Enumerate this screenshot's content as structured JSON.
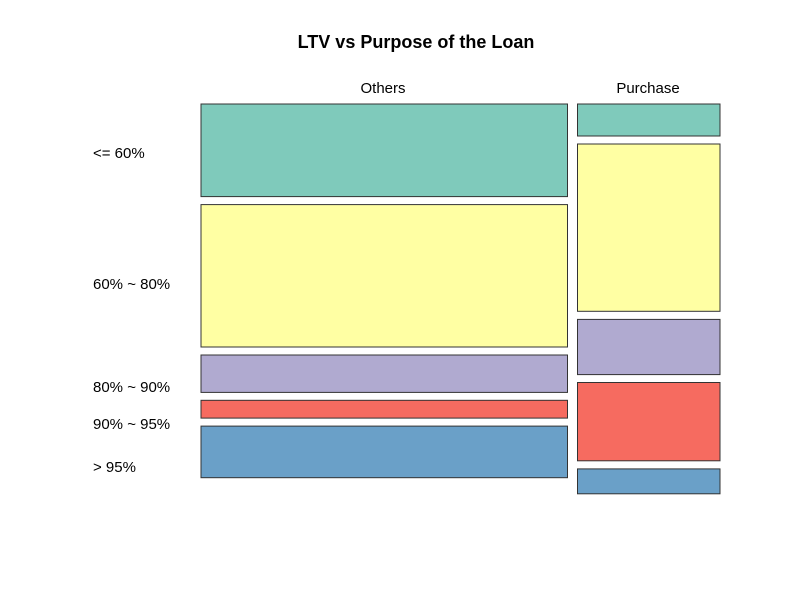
{
  "chart_data": {
    "type": "mosaic",
    "title": "LTV vs Purpose of the Loan",
    "columns": [
      {
        "name": "Others",
        "width_share": 0.72
      },
      {
        "name": "Purchase",
        "width_share": 0.28
      }
    ],
    "rows": [
      "<= 60%",
      "60% ~ 80%",
      "80% ~ 90%",
      "90% ~ 95%",
      "> 95%"
    ],
    "colors": [
      "#7fcabb",
      "#ffffa3",
      "#b0aad0",
      "#f66b60",
      "#6aa0c8"
    ],
    "proportions": {
      "Others": [
        0.26,
        0.4,
        0.105,
        0.05,
        0.145
      ],
      "Purchase": [
        0.09,
        0.47,
        0.155,
        0.22,
        0.07
      ]
    },
    "row_label_column": "Others"
  }
}
